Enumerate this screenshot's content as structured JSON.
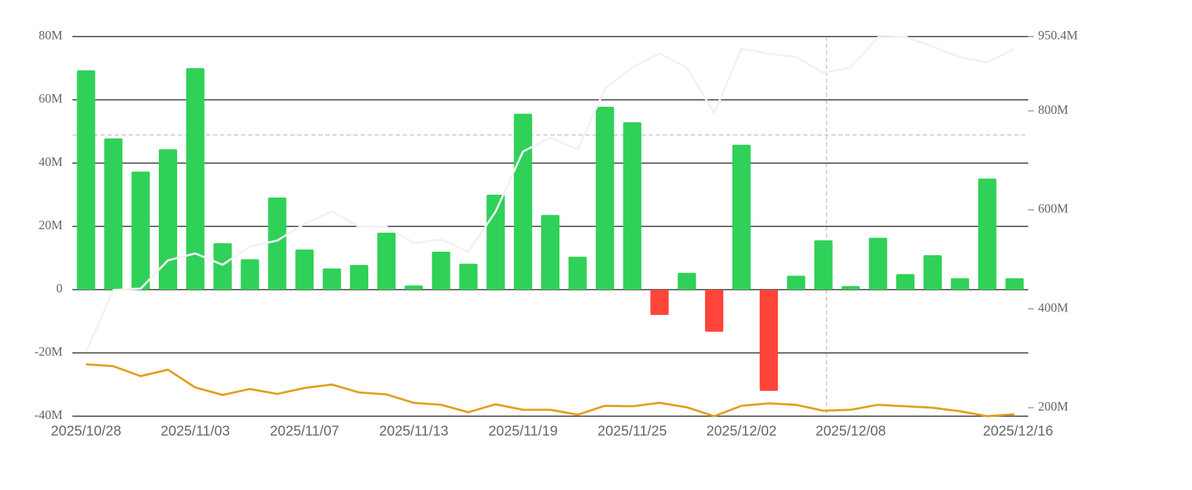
{
  "chart_data": {
    "type": "bar",
    "categories": [
      "2025/10/28",
      null,
      null,
      null,
      "2025/11/03",
      null,
      null,
      null,
      "2025/11/07",
      null,
      null,
      null,
      "2025/11/13",
      null,
      null,
      null,
      "2025/11/19",
      null,
      null,
      null,
      "2025/11/25",
      null,
      null,
      null,
      "2025/12/02",
      null,
      null,
      null,
      "2025/12/08",
      null,
      null,
      null,
      null,
      null,
      "2025/12/16"
    ],
    "values": [
      69.3,
      47.8,
      37.3,
      44.4,
      70,
      14.7,
      9.6,
      29.1,
      12.7,
      6.7,
      7.8,
      18,
      1.3,
      12,
      8.2,
      30,
      55.6,
      23.6,
      10.4,
      57.8,
      52.9,
      -8,
      5.3,
      -13.3,
      45.8,
      -32,
      4.4,
      15.6,
      1.1,
      16.4,
      4.9,
      10.9,
      3.6,
      35.1,
      3.6
    ],
    "positive_color": "#30d158",
    "negative_color": "#ff453a",
    "series": [
      {
        "color": "#f2f2f2",
        "axis": "y2",
        "values": [
          313,
          438,
          441,
          498,
          512,
          489,
          526,
          538,
          572,
          597,
          566,
          566,
          533,
          540,
          515,
          597,
          718,
          746,
          722,
          845,
          888,
          916,
          888,
          796,
          926,
          916,
          909,
          877,
          888,
          949,
          950,
          930,
          909,
          898,
          926
        ]
      },
      {
        "color": "#e0a020",
        "axis": "y2",
        "values": [
          288,
          284,
          264,
          277,
          241,
          226,
          238,
          228,
          240,
          247,
          231,
          227,
          210,
          206,
          191,
          207,
          196,
          196,
          186,
          204,
          203,
          210,
          201,
          183,
          204,
          209,
          206,
          194,
          196,
          206,
          203,
          200,
          193,
          183,
          187
        ]
      }
    ],
    "ylim": [
      -40,
      80
    ],
    "yticks": [
      {
        "value": -40,
        "label": "-40M"
      },
      {
        "value": -20,
        "label": "-20M"
      },
      0,
      {
        "value": 20,
        "label": "20M"
      },
      {
        "value": 40,
        "label": "40M"
      },
      {
        "value": 60,
        "label": "60M"
      },
      {
        "value": 80,
        "label": "80M"
      }
    ],
    "y2lim": [
      183,
      950.4
    ],
    "y2ticks": [
      {
        "value": 200,
        "label": "200M"
      },
      {
        "value": 400,
        "label": "400M"
      },
      {
        "value": 600,
        "label": "600M"
      },
      {
        "value": 800,
        "label": "800M"
      },
      {
        "value": 950.4,
        "label": "950.4M"
      }
    ],
    "grid": true
  }
}
